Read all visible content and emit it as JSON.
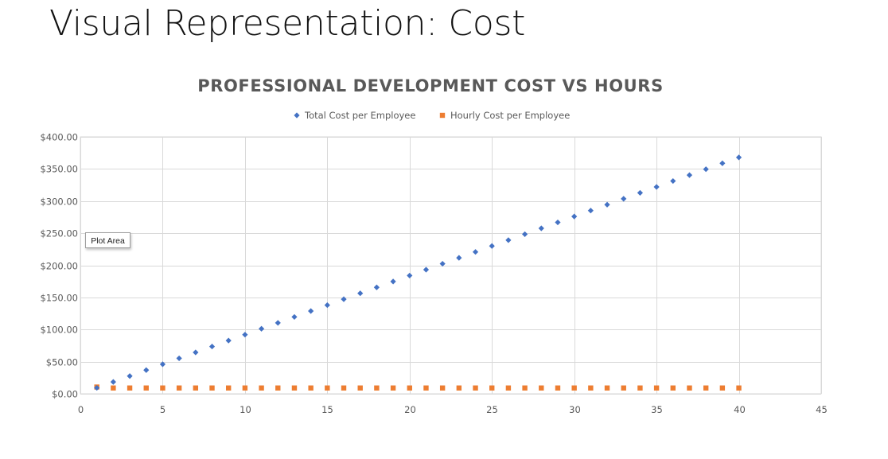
{
  "slide": {
    "title": "Visual Representation: Cost"
  },
  "tooltip": {
    "label": "Plot Area"
  },
  "chart_data": {
    "type": "scatter",
    "title": "PROFESSIONAL DEVELOPMENT COST VS HOURS",
    "xlabel": "",
    "ylabel": "",
    "xlim": [
      0,
      45
    ],
    "ylim": [
      0,
      400
    ],
    "x_ticks": [
      "0",
      "5",
      "10",
      "15",
      "20",
      "25",
      "30",
      "35",
      "40",
      "45"
    ],
    "y_ticks": [
      "$0.00",
      "$50.00",
      "$100.00",
      "$150.00",
      "$200.00",
      "$250.00",
      "$300.00",
      "$350.00",
      "$400.00"
    ],
    "grid": true,
    "legend_position": "top",
    "x": [
      1,
      2,
      3,
      4,
      5,
      6,
      7,
      8,
      9,
      10,
      11,
      12,
      13,
      14,
      15,
      16,
      17,
      18,
      19,
      20,
      21,
      22,
      23,
      24,
      25,
      26,
      27,
      28,
      29,
      30,
      31,
      32,
      33,
      34,
      35,
      36,
      37,
      38,
      39,
      40
    ],
    "series": [
      {
        "name": "Total Cost per Employee",
        "color": "#4472c4",
        "marker": "diamond",
        "values": [
          9.2,
          18.4,
          27.6,
          36.8,
          46,
          55.2,
          64.4,
          73.6,
          82.8,
          92,
          101.2,
          110.4,
          119.6,
          128.8,
          138,
          147.2,
          156.4,
          165.6,
          174.8,
          184,
          193.2,
          202.4,
          211.6,
          220.8,
          230,
          239.2,
          248.4,
          257.6,
          266.8,
          276,
          285.2,
          294.4,
          303.6,
          312.8,
          322,
          331.2,
          340.4,
          349.6,
          358.8,
          368
        ]
      },
      {
        "name": "Hourly Cost per Employee",
        "color": "#ed7d31",
        "marker": "square",
        "values": [
          10.5,
          9,
          9,
          9,
          9,
          9,
          9,
          9,
          9,
          9,
          9,
          9,
          9,
          9,
          9,
          9,
          9,
          9,
          9,
          9,
          9,
          9,
          9,
          9,
          9,
          9,
          9,
          9,
          9,
          9,
          9,
          9,
          9,
          9,
          9,
          9,
          9,
          9,
          9,
          9
        ]
      }
    ]
  }
}
